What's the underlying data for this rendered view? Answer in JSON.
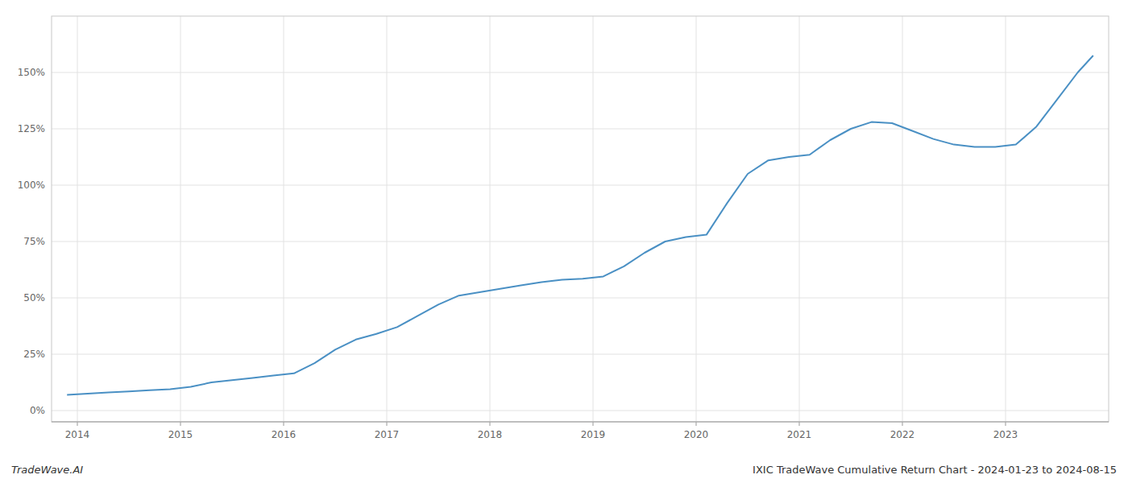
{
  "chart_data": {
    "type": "line",
    "x": [
      2013.9,
      2014.1,
      2014.3,
      2014.5,
      2014.7,
      2014.9,
      2015.1,
      2015.3,
      2015.5,
      2015.7,
      2015.9,
      2016.1,
      2016.3,
      2016.5,
      2016.7,
      2016.9,
      2017.1,
      2017.3,
      2017.5,
      2017.7,
      2017.9,
      2018.1,
      2018.3,
      2018.5,
      2018.7,
      2018.9,
      2019.1,
      2019.3,
      2019.5,
      2019.7,
      2019.9,
      2020.1,
      2020.3,
      2020.5,
      2020.7,
      2020.9,
      2021.1,
      2021.3,
      2021.5,
      2021.7,
      2021.9,
      2022.1,
      2022.3,
      2022.5,
      2022.7,
      2022.9,
      2023.1,
      2023.3,
      2023.5,
      2023.7,
      2023.85
    ],
    "series": [
      {
        "color": "#4a90c4",
        "values": [
          7.0,
          7.5,
          8.0,
          8.5,
          9.0,
          9.5,
          10.5,
          12.5,
          13.5,
          14.5,
          15.5,
          16.5,
          21.0,
          27.0,
          31.5,
          34.0,
          37.0,
          42.0,
          47.0,
          51.0,
          52.5,
          54.0,
          55.5,
          57.0,
          58.0,
          58.5,
          59.5,
          64.0,
          70.0,
          75.0,
          77.0,
          78.0,
          92.0,
          105.0,
          111.0,
          112.5,
          113.5,
          120.0,
          125.0,
          128.0,
          127.5,
          124.0,
          120.5,
          118.0,
          117.0,
          117.0,
          118.0,
          126.0,
          138.0,
          150.0,
          157.5
        ]
      }
    ],
    "xlim": [
      2013.75,
      2024.0
    ],
    "xticks": [
      2014,
      2015,
      2016,
      2017,
      2018,
      2019,
      2020,
      2021,
      2022,
      2023
    ],
    "ylim": [
      -5,
      175
    ],
    "yticks": [
      {
        "value": 0,
        "label": "0%"
      },
      {
        "value": 25,
        "label": "25%"
      },
      {
        "value": 50,
        "label": "50%"
      },
      {
        "value": 75,
        "label": "75%"
      },
      {
        "value": 100,
        "label": "100%"
      },
      {
        "value": 125,
        "label": "125%"
      },
      {
        "value": 150,
        "label": "150%"
      }
    ],
    "grid": true,
    "annotations": [
      "TradeWave.AI",
      "IXIC TradeWave Cumulative Return Chart - 2024-01-23 to 2024-08-15"
    ]
  }
}
